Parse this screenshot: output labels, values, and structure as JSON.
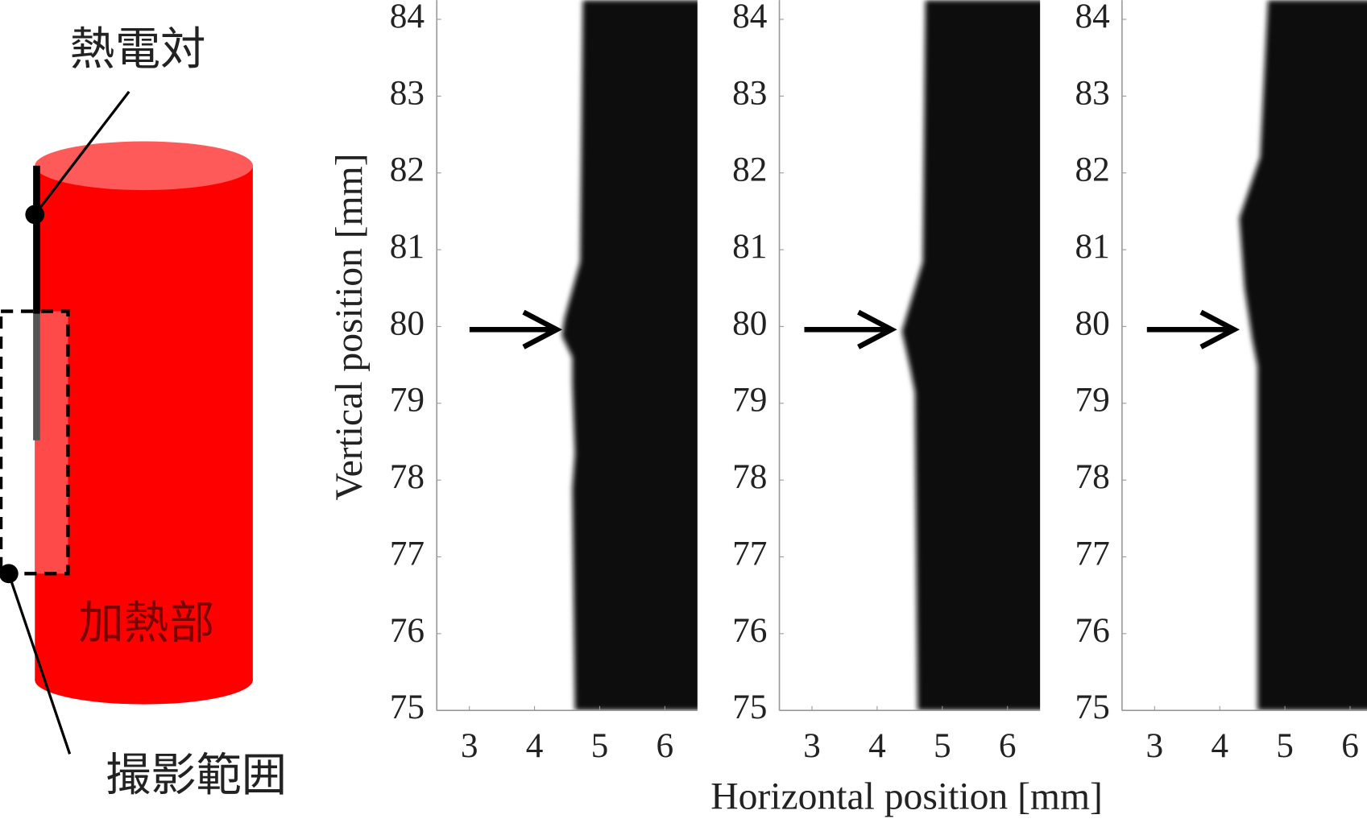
{
  "diagram": {
    "thermocouple": "熱電対",
    "heater": "加熱部",
    "imaging_range": "撮影範囲"
  },
  "panels": {
    "xlim": [
      2.5,
      6.5
    ],
    "ylim": [
      75,
      84.25
    ],
    "xticks": [
      3,
      4,
      5,
      6
    ],
    "yticks": [
      75,
      76,
      77,
      78,
      79,
      80,
      81,
      82,
      83,
      84
    ],
    "ylabel": "Vertical position [mm]",
    "xlabel": "Horizontal position [mm]"
  }
}
